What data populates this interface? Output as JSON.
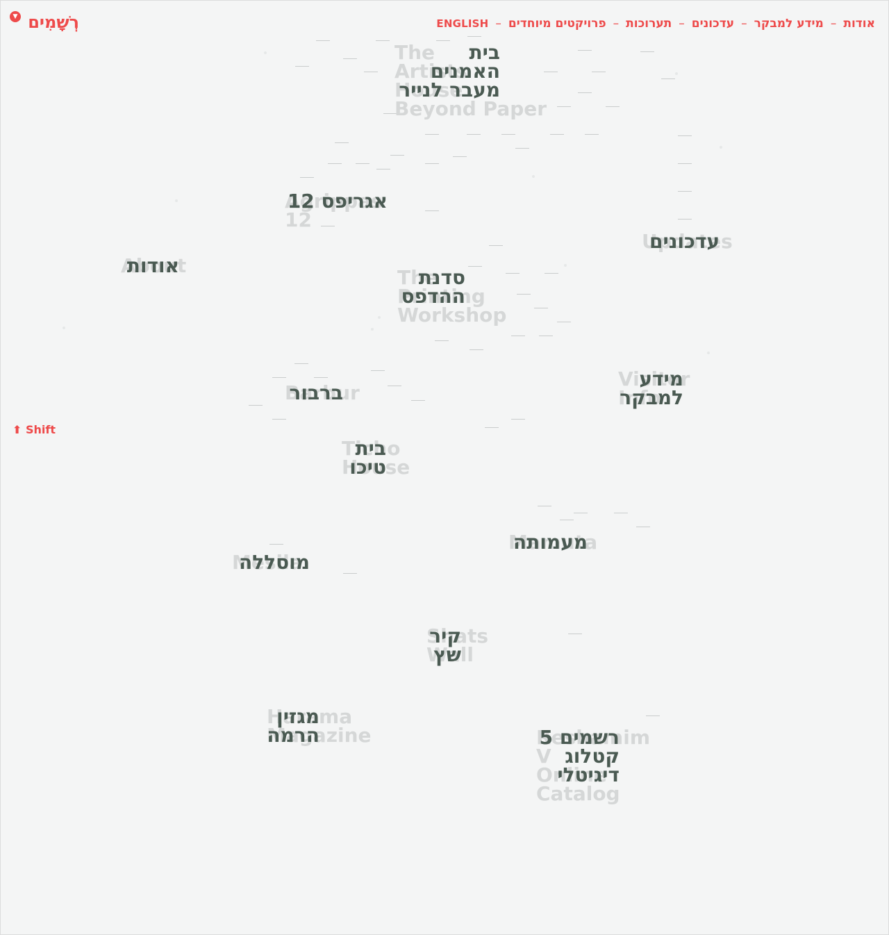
{
  "logo": {
    "text": "רְשָׁמִים",
    "badge": "▼"
  },
  "nav": {
    "items": [
      {
        "label": "אודות"
      },
      {
        "label": "מידע למבקר"
      },
      {
        "label": "עדכונים"
      },
      {
        "label": "תערוכות"
      },
      {
        "label": "פרויקטים מיוחדים"
      },
      {
        "label": "ENGLISH"
      }
    ],
    "separator": "–"
  },
  "shift_hint": "⬆ Shift",
  "cloud": [
    {
      "id": "artists-house",
      "he": "בית\nהאמנים\nמעבר לנייר",
      "en": "The\nArtists\nHouse\nBeyond Paper"
    },
    {
      "id": "agrippas",
      "he": "אגריפס 12",
      "en": "Agrippas 12"
    },
    {
      "id": "updates",
      "he": "עדכונים",
      "en": "Updates"
    },
    {
      "id": "about",
      "he": "אודות",
      "en": "About"
    },
    {
      "id": "printing-workshop",
      "he": "סדנת\nההדפס",
      "en": "The\nPrinting\nWorkshop"
    },
    {
      "id": "barbur",
      "he": "ברבור",
      "en": "Barbur"
    },
    {
      "id": "visitor-info",
      "he": "מידע\nלמבקר",
      "en": "Visitor\nInfo"
    },
    {
      "id": "ticho-house",
      "he": "בית\nטיכו",
      "en": "Ticho\nHouse"
    },
    {
      "id": "mamuta",
      "he": "מעמותה",
      "en": "Mamuta"
    },
    {
      "id": "mesila",
      "he": "מוסללה",
      "en": "Mesila"
    },
    {
      "id": "shats-wall",
      "he": "קיר\nשץ",
      "en": "Shats\nWall"
    },
    {
      "id": "hamama-magazine",
      "he": "מגזין\nהרמה",
      "en": "Harama\nMagazine"
    },
    {
      "id": "reshamim-catalogue",
      "he": "רשמים 5\nקטלוג\nדיגיטלי",
      "en": "Reshamim V\nOnline\nCatalog"
    }
  ]
}
